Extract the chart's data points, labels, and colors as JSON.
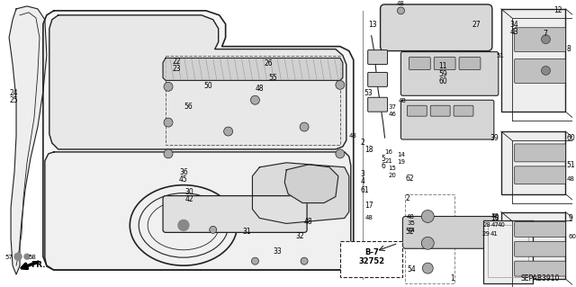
{
  "bg_color": "#ffffff",
  "diagram_code": "SEPAB3910",
  "figsize": [
    6.4,
    3.19
  ],
  "dpi": 100,
  "line_color": "#222222",
  "gray_fill": "#d8d8d8",
  "light_gray": "#eeeeee"
}
